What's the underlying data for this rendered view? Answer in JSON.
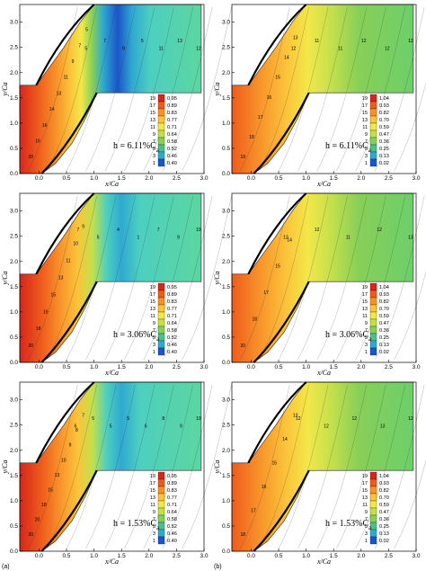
{
  "figure": {
    "panel_tags": [
      "(a)",
      "(b)"
    ],
    "x_label": "x/Ca",
    "y_label": "y/Ca",
    "x_ticks": [
      "0.0",
      "0.5",
      "1.0",
      "1.5",
      "2.0",
      "2.5",
      "3.0"
    ],
    "y_ticks": [
      "0.0",
      "0.5",
      "1.0",
      "1.5",
      "2.0",
      "2.5",
      "3.0"
    ],
    "legend_levels": [
      "19",
      "17",
      "15",
      "13",
      "11",
      "9",
      "7",
      "5",
      "3",
      "1"
    ],
    "legend_a_values": [
      "0.95",
      "0.89",
      "0.83",
      "0.77",
      "0.71",
      "0.64",
      "0.58",
      "0.52",
      "0.46",
      "0.40"
    ],
    "legend_b_values": [
      "1.04",
      "0.93",
      "0.82",
      "0.70",
      "0.59",
      "0.47",
      "0.36",
      "0.25",
      "0.13",
      "0.02"
    ],
    "level_colors": [
      "#d7261c",
      "#ee5b1b",
      "#f7922a",
      "#fbc43a",
      "#f2e84a",
      "#c3e04c",
      "#87cf58",
      "#4dbf8c",
      "#2fa9d0",
      "#1c55c9"
    ],
    "rows": [
      {
        "h_label": "h = 6.11%C",
        "h_sub": "a",
        "a_contour_labels": [
          "20",
          "16",
          "16",
          "14",
          "13",
          "11",
          "9",
          "7",
          "5",
          "5",
          "7",
          "9",
          "5",
          "11",
          "13",
          "12"
        ],
        "b_contour_labels": [
          "19",
          "18",
          "17",
          "16",
          "15",
          "14",
          "13",
          "12",
          "11",
          "11",
          "12",
          "12",
          "12"
        ]
      },
      {
        "h_label": "h = 3.06%C",
        "h_sub": "a",
        "a_contour_labels": [
          "20",
          "18",
          "16",
          "15",
          "13",
          "11",
          "10",
          "9",
          "7",
          "5",
          "4",
          "1",
          "7",
          "9",
          "10"
        ],
        "b_contour_labels": [
          "20",
          "18",
          "17",
          "15",
          "14",
          "13",
          "12",
          "11",
          "12",
          "13"
        ]
      },
      {
        "h_label": "h = 1.53%C",
        "h_sub": "a",
        "a_contour_labels": [
          "20",
          "20",
          "18",
          "15",
          "13",
          "10",
          "9",
          "8",
          "7",
          "6",
          "5",
          "5",
          "5",
          "6",
          "8",
          "9",
          "10"
        ],
        "b_contour_labels": [
          "18",
          "17",
          "16",
          "15",
          "14",
          "13",
          "12",
          "12",
          "12",
          "13",
          "12"
        ]
      }
    ]
  }
}
